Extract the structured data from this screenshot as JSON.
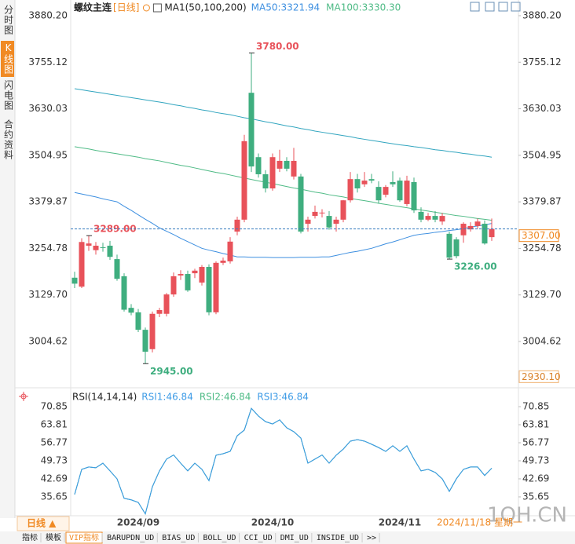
{
  "toolbar": {
    "symbol": "螺纹主连",
    "period": "[日线]",
    "indicator": "MA1(50,100,200)"
  },
  "sidebar": [
    "分时图",
    "K线图",
    "闪电图",
    "合约资料"
  ],
  "chart_data": [
    {
      "type": "candlestick",
      "categories": [
        null,
        null,
        null,
        null,
        null,
        null,
        null,
        null,
        null,
        "2024/09",
        null,
        null,
        null,
        null,
        null,
        null,
        null,
        null,
        null,
        null,
        null,
        null,
        null,
        null,
        null,
        null,
        null,
        null,
        "2024/10",
        null,
        null,
        null,
        null,
        null,
        null,
        null,
        null,
        null,
        null,
        null,
        null,
        null,
        null,
        null,
        null,
        null,
        "2024/11",
        null,
        null,
        null,
        null,
        null,
        null,
        null,
        null,
        null,
        null,
        null,
        null,
        null
      ],
      "open": [
        3176,
        3152,
        3262,
        3250,
        3258,
        3262,
        3226,
        3180,
        3095,
        3083,
        3036,
        2984,
        3079,
        3079,
        3131,
        3182,
        3186,
        3188,
        3163,
        3205,
        3083,
        3216,
        3220,
        3300,
        3332,
        3673,
        3500,
        3454,
        3416,
        3469,
        3490,
        3448,
        3448,
        3321,
        3342,
        3349,
        3342,
        3321,
        3332,
        3384,
        3441,
        3427,
        3441,
        3420,
        3399,
        3433,
        3437,
        3374,
        3433,
        3353,
        3332,
        3342,
        3327,
        3294,
        3279,
        3290,
        3306,
        3315,
        3321,
        3285
      ],
      "high": [
        3192,
        3282,
        3289,
        3272,
        3270,
        3275,
        3238,
        3188,
        3105,
        3092,
        3042,
        3085,
        3095,
        3135,
        3190,
        3196,
        3195,
        3200,
        3210,
        3212,
        3220,
        3230,
        3285,
        3340,
        3560,
        3780,
        3510,
        3465,
        3510,
        3520,
        3500,
        3525,
        3455,
        3340,
        3370,
        3360,
        3355,
        3340,
        3385,
        3460,
        3455,
        3460,
        3455,
        3435,
        3425,
        3462,
        3445,
        3450,
        3445,
        3365,
        3350,
        3355,
        3350,
        3300,
        3285,
        3325,
        3325,
        3335,
        3330,
        3335
      ],
      "low": [
        3148,
        3148,
        3248,
        3238,
        3246,
        3224,
        3168,
        3085,
        3075,
        3030,
        2945,
        2975,
        3070,
        3072,
        3125,
        3170,
        3138,
        3175,
        3155,
        3075,
        3078,
        3210,
        3214,
        3290,
        3325,
        3460,
        3445,
        3405,
        3410,
        3460,
        3462,
        3440,
        3295,
        3300,
        3335,
        3338,
        3305,
        3300,
        3325,
        3378,
        3405,
        3420,
        3430,
        3375,
        3392,
        3420,
        3380,
        3368,
        3350,
        3325,
        3328,
        3325,
        3318,
        3226,
        3228,
        3270,
        3300,
        3308,
        3265,
        3275
      ],
      "close": [
        3160,
        3272,
        3268,
        3262,
        3256,
        3232,
        3173,
        3090,
        3082,
        3036,
        2977,
        3079,
        3089,
        3131,
        3180,
        3186,
        3142,
        3195,
        3205,
        3083,
        3216,
        3222,
        3273,
        3332,
        3543,
        3475,
        3454,
        3416,
        3500,
        3490,
        3469,
        3490,
        3300,
        3332,
        3353,
        3351,
        3311,
        3332,
        3384,
        3441,
        3416,
        3437,
        3437,
        3384,
        3420,
        3427,
        3384,
        3437,
        3357,
        3332,
        3342,
        3332,
        3342,
        3230,
        3234,
        3321,
        3315,
        3327,
        3268,
        3307
      ],
      "up_color": "#e8525a",
      "down_color": "#3fae7f",
      "series": [
        {
          "legend": "MA50:3321.94",
          "color": "#3d8fe0",
          "values": [
            3405,
            3401,
            3397,
            3393,
            3388,
            3384,
            3380,
            3368,
            3357,
            3345,
            3333,
            3322,
            3310,
            3301,
            3292,
            3282,
            3273,
            3264,
            3255,
            3250,
            3246,
            3241,
            3237,
            3232,
            3232,
            3231,
            3231,
            3231,
            3230,
            3230,
            3230,
            3230,
            3231,
            3231,
            3231,
            3232,
            3232,
            3236,
            3240,
            3244,
            3247,
            3251,
            3255,
            3261,
            3267,
            3272,
            3278,
            3284,
            3290,
            3293,
            3295,
            3298,
            3300,
            3303,
            3305,
            3308,
            3312,
            3315,
            3318,
            3321.94
          ]
        },
        {
          "legend": "MA100:3330.30",
          "color": "#4fbb86",
          "values": [
            3528,
            3525,
            3522,
            3518,
            3515,
            3512,
            3509,
            3506,
            3503,
            3500,
            3496,
            3493,
            3490,
            3486,
            3482,
            3478,
            3475,
            3471,
            3467,
            3463,
            3459,
            3456,
            3452,
            3448,
            3444,
            3440,
            3436,
            3433,
            3429,
            3425,
            3421,
            3417,
            3414,
            3410,
            3406,
            3403,
            3399,
            3396,
            3393,
            3389,
            3386,
            3383,
            3380,
            3376,
            3373,
            3370,
            3367,
            3364,
            3361,
            3358,
            3355,
            3352,
            3349,
            3346,
            3343,
            3341,
            3338,
            3335,
            3333,
            3330.3
          ]
        },
        {
          "color": "#31a5bf",
          "values": [
            3684,
            3681,
            3678,
            3675,
            3672,
            3669,
            3666,
            3663,
            3660,
            3657,
            3654,
            3651,
            3648,
            3645,
            3641,
            3638,
            3634,
            3631,
            3627,
            3624,
            3620,
            3617,
            3614,
            3610,
            3606,
            3603,
            3599,
            3595,
            3592,
            3588,
            3584,
            3581,
            3577,
            3574,
            3570,
            3567,
            3564,
            3561,
            3558,
            3555,
            3551,
            3548,
            3545,
            3542,
            3539,
            3536,
            3533,
            3531,
            3528,
            3526,
            3523,
            3520,
            3518,
            3515,
            3513,
            3510,
            3508,
            3505,
            3503,
            3500
          ]
        }
      ],
      "ylim": [
        2888.6,
        3911.8
      ],
      "yticks": [
        {
          "value": 3880.2,
          "label": "3880.20"
        },
        {
          "value": 3755.12,
          "label": "3755.12"
        },
        {
          "value": 3630.03,
          "label": "3630.03"
        },
        {
          "value": 3504.95,
          "label": "3504.95"
        },
        {
          "value": 3379.87,
          "label": "3379.87"
        },
        {
          "value": 3254.78,
          "label": "3254.78"
        },
        {
          "value": 3129.7,
          "label": "3129.70"
        },
        {
          "value": 3004.62,
          "label": "3004.62"
        }
      ],
      "annotations": [
        {
          "value": 3780,
          "label": "3780.00"
        },
        {
          "value": 2945,
          "label": "2945.00"
        },
        {
          "value": 3289,
          "label": "3289.00"
        },
        {
          "value": 3226,
          "label": "3226.00"
        }
      ],
      "last_price": {
        "value": 3307,
        "label": "3307.00"
      },
      "cursor_price": {
        "value": 2930.1,
        "label": "2930.10"
      }
    },
    {
      "type": "line",
      "title": "RSI(14,14,14)",
      "series": [
        {
          "legend": "RSI1:46.84",
          "color": "#3d9be6",
          "values": [
            36.6,
            46.4,
            47.3,
            47.0,
            48.8,
            45.8,
            42.7,
            35.1,
            34.5,
            33.5,
            29.0,
            39.6,
            45.8,
            50.4,
            52.0,
            48.8,
            45.8,
            48.8,
            46.4,
            42.0,
            51.9,
            52.5,
            53.4,
            59.5,
            61.7,
            70.2,
            67.2,
            65.0,
            64.1,
            65.7,
            62.6,
            61.1,
            58.6,
            48.8,
            50.4,
            52.0,
            48.8,
            51.9,
            54.3,
            57.4,
            58.0,
            57.4,
            56.2,
            54.9,
            53.4,
            55.6,
            53.4,
            55.6,
            50.4,
            45.8,
            46.4,
            45.2,
            42.7,
            37.8,
            42.7,
            46.4,
            47.3,
            47.3,
            44.0,
            46.84
          ]
        },
        {
          "legend": "RSI2:46.84",
          "color": "#4fbb86",
          "values": [
            36.6,
            46.4,
            47.3,
            47.0,
            48.8,
            45.8,
            42.7,
            35.1,
            34.5,
            33.5,
            29.0,
            39.6,
            45.8,
            50.4,
            52.0,
            48.8,
            45.8,
            48.8,
            46.4,
            42.0,
            51.9,
            52.5,
            53.4,
            59.5,
            61.7,
            70.2,
            67.2,
            65.0,
            64.1,
            65.7,
            62.6,
            61.1,
            58.6,
            48.8,
            50.4,
            52.0,
            48.8,
            51.9,
            54.3,
            57.4,
            58.0,
            57.4,
            56.2,
            54.9,
            53.4,
            55.6,
            53.4,
            55.6,
            50.4,
            45.8,
            46.4,
            45.2,
            42.7,
            37.8,
            42.7,
            46.4,
            47.3,
            47.3,
            44.0,
            46.84
          ]
        },
        {
          "legend": "RSI3:46.84",
          "color": "#3d9be6",
          "values": [
            36.6,
            46.4,
            47.3,
            47.0,
            48.8,
            45.8,
            42.7,
            35.1,
            34.5,
            33.5,
            29.0,
            39.6,
            45.8,
            50.4,
            52.0,
            48.8,
            45.8,
            48.8,
            46.4,
            42.0,
            51.9,
            52.5,
            53.4,
            59.5,
            61.7,
            70.2,
            67.2,
            65.0,
            64.1,
            65.7,
            62.6,
            61.1,
            58.6,
            48.8,
            50.4,
            52.0,
            48.8,
            51.9,
            54.3,
            57.4,
            58.0,
            57.4,
            56.2,
            54.9,
            53.4,
            55.6,
            53.4,
            55.6,
            50.4,
            45.8,
            46.4,
            45.2,
            42.7,
            37.8,
            42.7,
            46.4,
            47.3,
            47.3,
            44.0,
            46.84
          ]
        }
      ],
      "ylim": [
        28.9,
        77.3
      ],
      "yticks": [
        70.85,
        63.81,
        56.77,
        49.73,
        42.69,
        35.65
      ]
    }
  ],
  "bottom": {
    "period": "日线 ▲",
    "date": "2024/11/18 星期一",
    "watermark": "1QH.CN",
    "tabs": [
      "指标",
      "模板",
      "VIP指标",
      "BARUPDN_UD",
      "BIAS_UD",
      "BOLL_UD",
      "CCI_UD",
      "DMI_UD",
      "INSIDE_UD",
      ">>"
    ]
  }
}
